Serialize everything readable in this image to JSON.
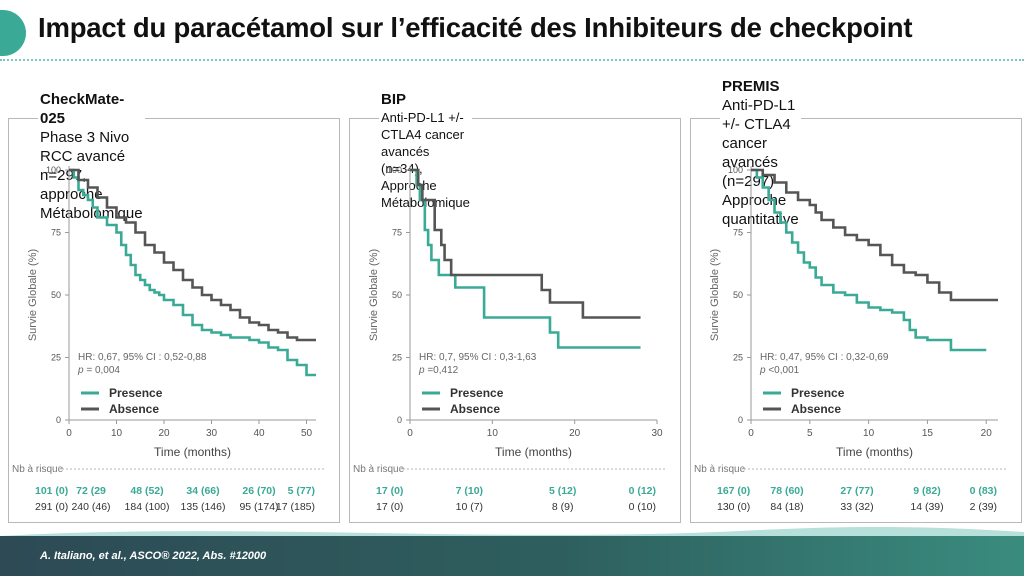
{
  "title": "Impact du paracétamol sur l’efficacité des Inhibiteurs de checkpoint",
  "citation": "A. Italiano, et al., ASCO® 2022, Abs. #12000",
  "colors": {
    "presence": "#3aaa97",
    "absence": "#555555",
    "accent": "#3aaa97"
  },
  "panels": [
    {
      "heading_bold": "CheckMate-025",
      "heading_lines": [
        "Phase 3 Nivo RCC avancé n=297,",
        "approche Métabolomique"
      ],
      "stats_line1": "HR: 0,67, 95% CI : 0,52-0,88",
      "stats_p_label": "p",
      "stats_p_value": " = 0,004",
      "ylabel": "Survie Globale (%)",
      "xlabel": "Time (months)",
      "risk_label": "Nb à risque",
      "legend": [
        "Presence",
        "Absence"
      ],
      "risk_presence": [
        "101 (0)",
        "72 (29",
        "48 (52)",
        "34 (66)",
        "26 (70)",
        "5 (77)"
      ],
      "risk_absence": [
        "291 (0)",
        "240 (46)",
        "184 (100)",
        "135 (146)",
        "95 (174)",
        "17 (185)"
      ],
      "x_ticks": [
        "0",
        "10",
        "20",
        "30",
        "40",
        "50"
      ],
      "y_ticks": [
        "0",
        "25",
        "50",
        "75",
        "100"
      ]
    },
    {
      "heading_bold": "BIP",
      "heading_lines": [
        "Anti-PD-L1 +/- CTLA4 cancer avancés",
        "(n=34), Approche Métabolomique"
      ],
      "stats_line1": "HR: 0,7, 95% CI : 0,3-1,63",
      "stats_p_label": "p",
      "stats_p_value": " =0,412",
      "ylabel": "Survie Globale (%)",
      "xlabel": "Time (months)",
      "risk_label": "Nb à risque",
      "legend": [
        "Presence",
        "Absence"
      ],
      "risk_presence": [
        "17 (0)",
        "7 (10)",
        "5 (12)",
        "0 (12)"
      ],
      "risk_absence": [
        "17 (0)",
        "10 (7)",
        "8 (9)",
        "0 (10)"
      ],
      "x_ticks": [
        "0",
        "10",
        "20",
        "30"
      ],
      "y_ticks": [
        "0",
        "25",
        "50",
        "75",
        "100"
      ]
    },
    {
      "heading_bold": "PREMIS",
      "heading_lines": [
        "Anti-PD-L1 +/- CTLA4 cancer",
        "avancés (n=297) Approche",
        "quantitative"
      ],
      "stats_line1": "HR: 0,47, 95% CI : 0,32-0,69",
      "stats_p_label": "p",
      "stats_p_value": " <0,001",
      "ylabel": "Survie Globale (%)",
      "xlabel": "Time (months)",
      "risk_label": "Nb à risque",
      "legend": [
        "Presence",
        "Absence"
      ],
      "risk_presence": [
        "167 (0)",
        "78 (60)",
        "27 (77)",
        "9 (82)",
        "0 (83)"
      ],
      "risk_absence": [
        "130 (0)",
        "84 (18)",
        "33 (32)",
        "14 (39)",
        "2 (39)"
      ],
      "x_ticks": [
        "0",
        "5",
        "10",
        "15",
        "20"
      ],
      "y_ticks": [
        "0",
        "25",
        "50",
        "75",
        "100"
      ]
    }
  ],
  "chart_data": [
    {
      "type": "line",
      "step": true,
      "xlim": [
        0,
        52
      ],
      "ylim": [
        0,
        100
      ],
      "x_ticks": [
        0,
        10,
        20,
        30,
        40,
        50
      ],
      "y_ticks": [
        0,
        25,
        50,
        75,
        100
      ],
      "xlabel": "Time (months)",
      "ylabel": "Survie Globale (%)",
      "risk_times": [
        0,
        10,
        20,
        30,
        40,
        50
      ],
      "series": [
        {
          "name": "Presence",
          "color": "#3aaa97",
          "x": [
            0,
            1,
            2,
            3,
            4,
            5,
            6,
            8,
            10,
            11,
            12,
            13,
            14,
            15,
            16,
            17,
            18,
            19,
            20,
            22,
            24,
            26,
            28,
            30,
            32,
            34,
            36,
            38,
            40,
            42,
            44,
            46,
            48,
            50,
            52
          ],
          "y": [
            100,
            97,
            92,
            90,
            88,
            85,
            81,
            78,
            75,
            70,
            66,
            62,
            58,
            56,
            54,
            52,
            51,
            50,
            48,
            46,
            42,
            38,
            36,
            35,
            34,
            33,
            33,
            32,
            31,
            29,
            28,
            24,
            22,
            18,
            18
          ]
        },
        {
          "name": "Absence",
          "color": "#555555",
          "x": [
            0,
            2,
            4,
            6,
            8,
            10,
            12,
            14,
            16,
            18,
            20,
            22,
            24,
            26,
            28,
            30,
            32,
            34,
            36,
            38,
            40,
            42,
            44,
            46,
            48,
            50,
            52
          ],
          "y": [
            100,
            96,
            93,
            89,
            85,
            81,
            79,
            75,
            70,
            67,
            63,
            60,
            56,
            53,
            50,
            48,
            46,
            44,
            41,
            39,
            38,
            36,
            35,
            33,
            32,
            32,
            32
          ]
        }
      ]
    },
    {
      "type": "line",
      "step": true,
      "xlim": [
        0,
        30
      ],
      "ylim": [
        0,
        100
      ],
      "x_ticks": [
        0,
        10,
        20,
        30
      ],
      "y_ticks": [
        0,
        25,
        50,
        75,
        100
      ],
      "xlabel": "Time (months)",
      "ylabel": "Survie Globale (%)",
      "risk_times": [
        0,
        10,
        20,
        30
      ],
      "series": [
        {
          "name": "Presence",
          "color": "#3aaa97",
          "x": [
            0,
            0.8,
            1.2,
            1.8,
            2.2,
            2.6,
            3.5,
            5.5,
            9,
            17,
            18,
            28
          ],
          "y": [
            100,
            94,
            88,
            76,
            70,
            64,
            58,
            53,
            41,
            35,
            29,
            29
          ]
        },
        {
          "name": "Absence",
          "color": "#555555",
          "x": [
            0,
            1,
            1.5,
            3,
            3.8,
            4.2,
            5,
            11,
            16,
            17,
            21,
            28
          ],
          "y": [
            100,
            94,
            88,
            76,
            70,
            64,
            58,
            58,
            52,
            47,
            41,
            41
          ]
        }
      ]
    },
    {
      "type": "line",
      "step": true,
      "xlim": [
        0,
        21
      ],
      "ylim": [
        0,
        100
      ],
      "x_ticks": [
        0,
        5,
        10,
        15,
        20
      ],
      "y_ticks": [
        0,
        25,
        50,
        75,
        100
      ],
      "xlabel": "Time (months)",
      "ylabel": "Survie Globale (%)",
      "risk_times": [
        0,
        5,
        10,
        15,
        20
      ],
      "series": [
        {
          "name": "Presence",
          "color": "#3aaa97",
          "x": [
            0,
            0.5,
            1,
            1.5,
            2,
            2.5,
            3,
            3.5,
            4,
            4.5,
            5,
            5.5,
            6,
            7,
            8,
            9,
            10,
            11,
            12,
            13,
            13.5,
            14,
            15,
            17,
            19,
            20
          ],
          "y": [
            100,
            97,
            93,
            88,
            83,
            79,
            75,
            71,
            67,
            63,
            61,
            57,
            54,
            51,
            50,
            47,
            45,
            44,
            43,
            40,
            36,
            33,
            32,
            28,
            28,
            28
          ]
        },
        {
          "name": "Absence",
          "color": "#555555",
          "x": [
            0,
            1,
            2,
            3,
            4,
            5,
            5.5,
            6,
            7,
            8,
            9,
            10,
            11,
            12,
            13,
            14,
            15,
            16,
            17,
            18,
            19,
            20,
            21
          ],
          "y": [
            100,
            98,
            95,
            91,
            88,
            86,
            83,
            80,
            77,
            74,
            72,
            70,
            66,
            62,
            59,
            58,
            55,
            51,
            48,
            48,
            48,
            48,
            48
          ]
        }
      ]
    }
  ]
}
